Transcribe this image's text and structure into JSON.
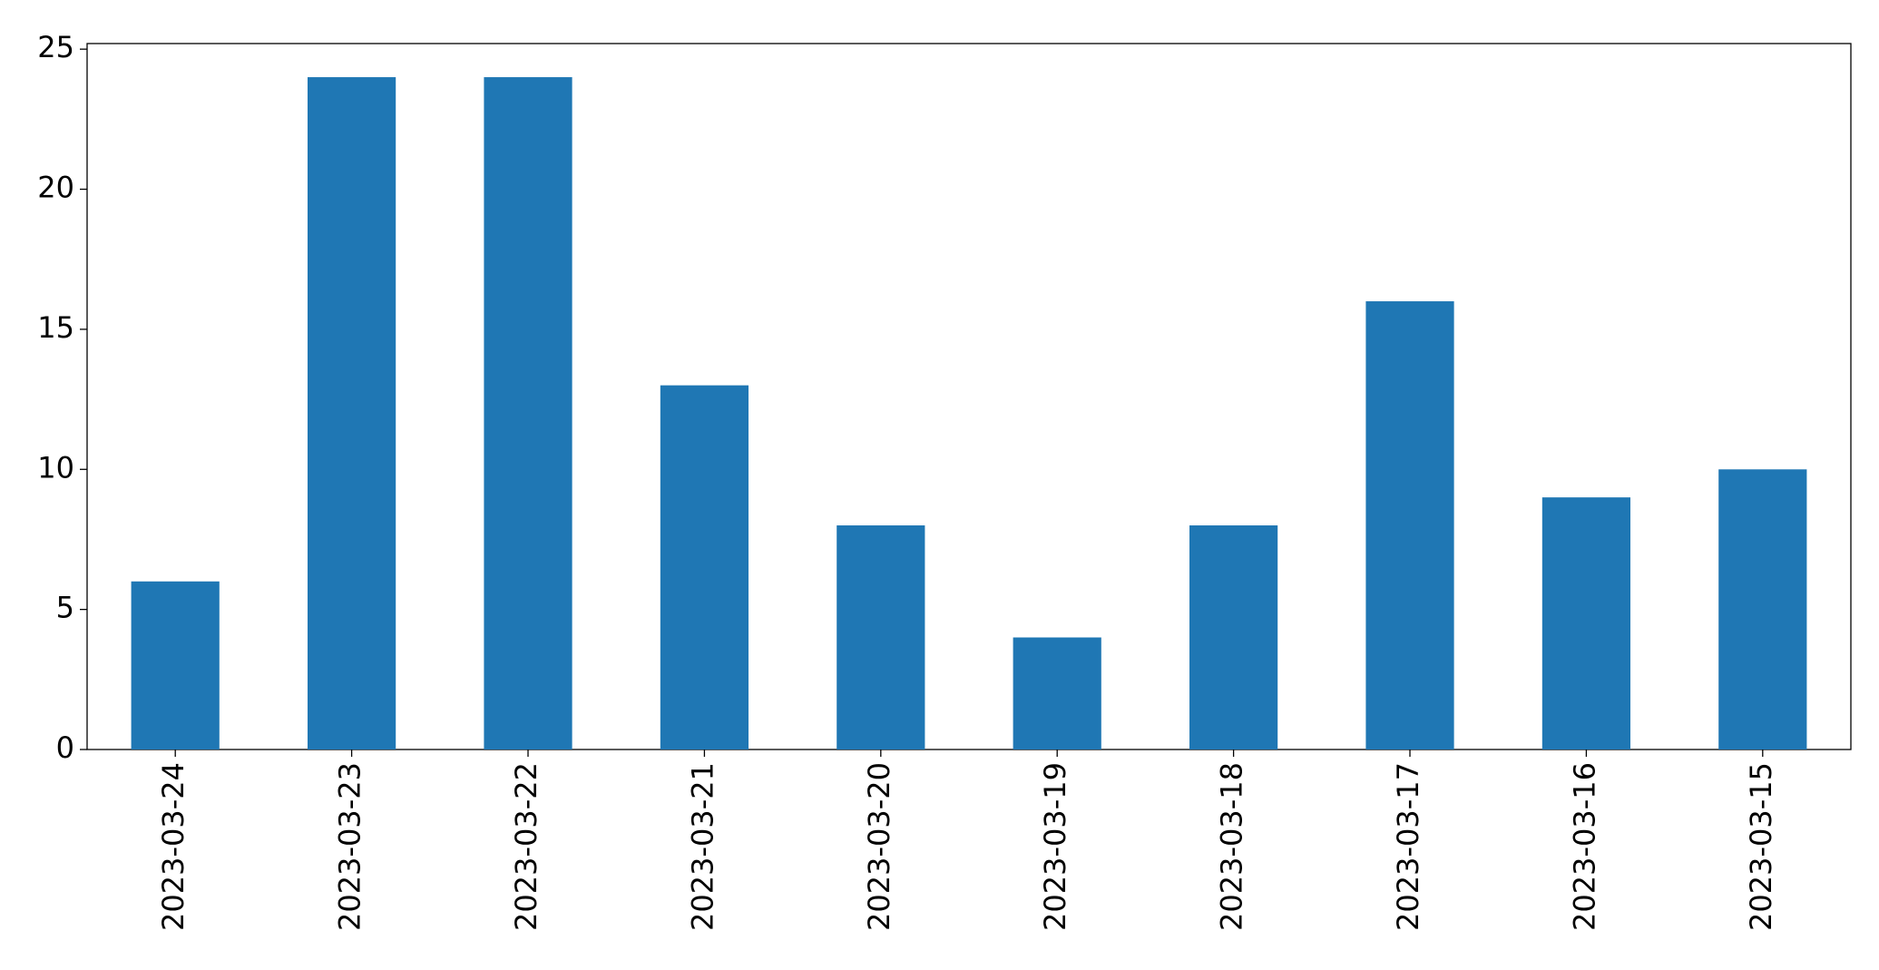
{
  "chart_data": {
    "type": "bar",
    "categories": [
      "2023-03-24",
      "2023-03-23",
      "2023-03-22",
      "2023-03-21",
      "2023-03-20",
      "2023-03-19",
      "2023-03-18",
      "2023-03-17",
      "2023-03-16",
      "2023-03-15"
    ],
    "values": [
      6,
      24,
      24,
      13,
      8,
      4,
      8,
      16,
      9,
      10
    ],
    "color": "#1f77b4",
    "ylim": [
      0,
      25.2
    ],
    "yticks": [
      0,
      5,
      10,
      15,
      20,
      25
    ],
    "grid": false
  }
}
